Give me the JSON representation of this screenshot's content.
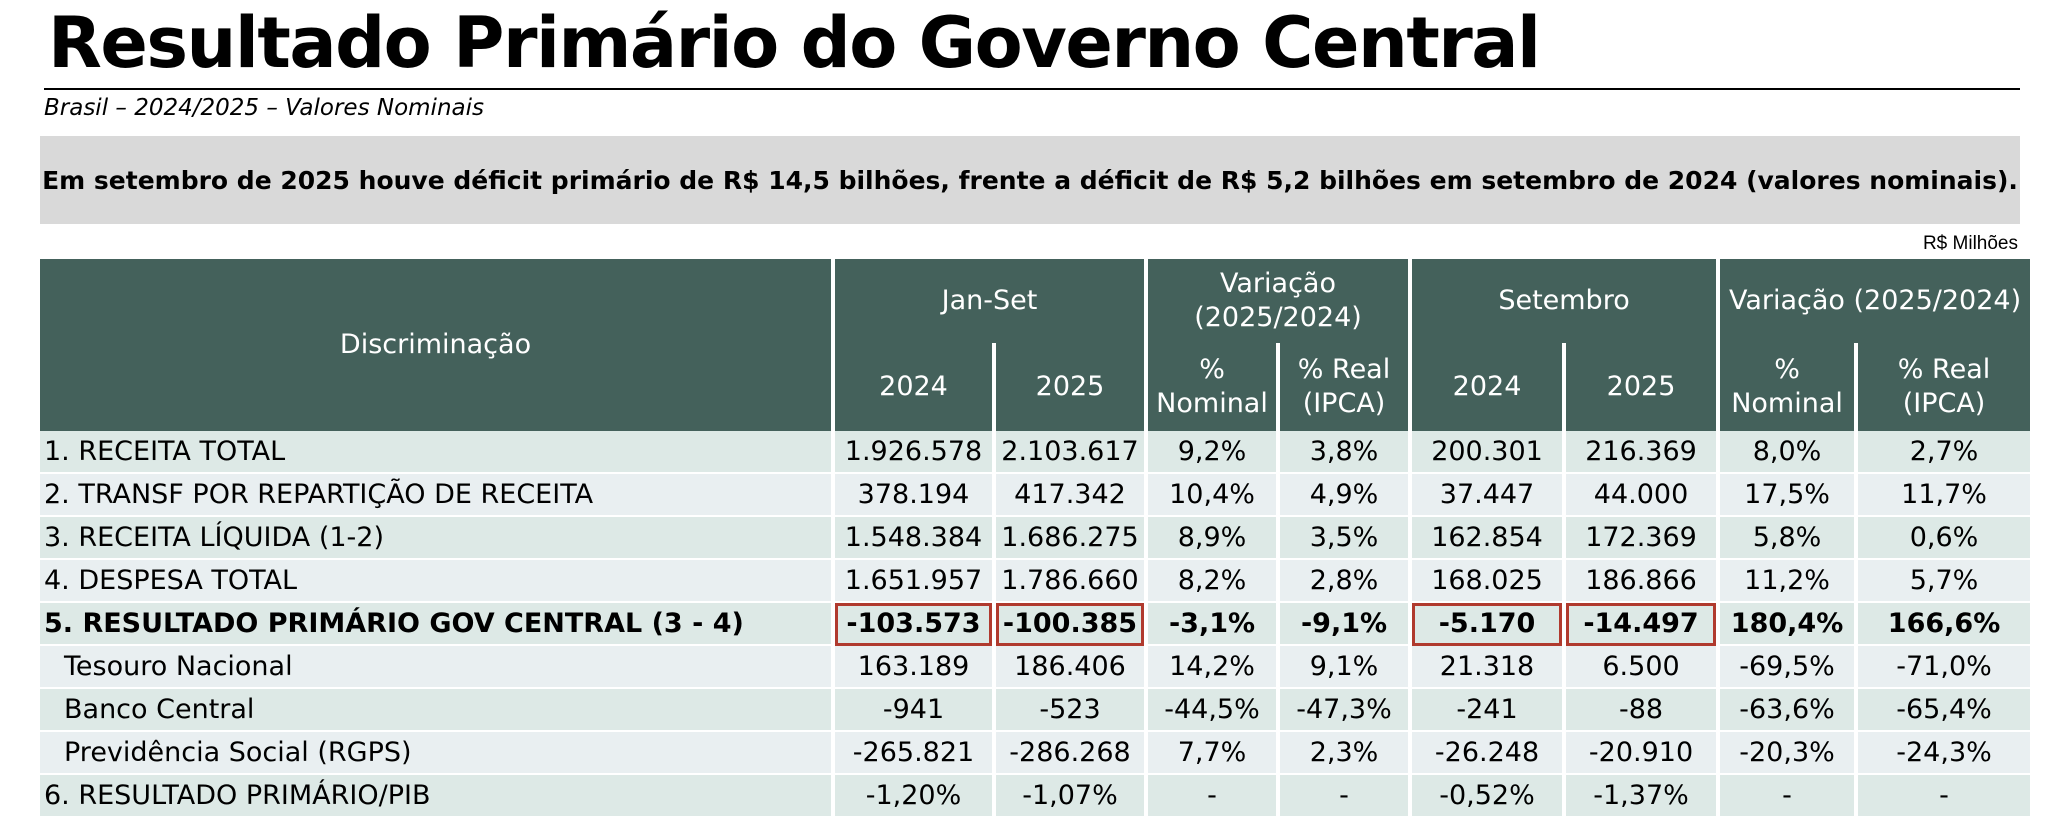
{
  "title": "Resultado Primário do Governo Central",
  "subtitle": "Brasil – 2024/2025 – Valores Nominais",
  "summary": "Em setembro de 2025 houve déficit primário de R$ 14,5 bilhões, frente a déficit de R$ 5,2 bilhões em setembro de 2024 (valores nominais).",
  "unit_note": "R$ Milhões",
  "colors": {
    "header_bg": "#44615b",
    "row_odd": "#dde9e6",
    "row_even": "#e9eff1",
    "highlight_border": "#b03a2e",
    "summary_bg": "#d9d9d9"
  },
  "table": {
    "header": {
      "discriminacao": "Discriminação",
      "group_janset": "Jan-Set",
      "group_var1_line1": "Variação",
      "group_var1_line2": "(2025/2024)",
      "group_setembro": "Setembro",
      "group_var2": "Variação (2025/2024)",
      "year_2024": "2024",
      "year_2025": "2025",
      "pct_line1": "%",
      "nominal": "Nominal",
      "real_line1": "% Real",
      "real_line2": "(IPCA)"
    },
    "rows": [
      {
        "label": "1. RECEITA TOTAL",
        "values": [
          "1.926.578",
          "2.103.617",
          "9,2%",
          "3,8%",
          "200.301",
          "216.369",
          "8,0%",
          "2,7%"
        ]
      },
      {
        "label": "2. TRANSF POR REPARTIÇÃO DE RECEITA",
        "values": [
          "378.194",
          "417.342",
          "10,4%",
          "4,9%",
          "37.447",
          "44.000",
          "17,5%",
          "11,7%"
        ]
      },
      {
        "label": "3. RECEITA LÍQUIDA (1-2)",
        "values": [
          "1.548.384",
          "1.686.275",
          "8,9%",
          "3,5%",
          "162.854",
          "172.369",
          "5,8%",
          "0,6%"
        ]
      },
      {
        "label": "4. DESPESA TOTAL",
        "values": [
          "1.651.957",
          "1.786.660",
          "8,2%",
          "2,8%",
          "168.025",
          "186.866",
          "11,2%",
          "5,7%"
        ]
      },
      {
        "label": "5. RESULTADO PRIMÁRIO GOV CENTRAL (3 - 4)",
        "values": [
          "-103.573",
          "-100.385",
          "-3,1%",
          "-9,1%",
          "-5.170",
          "-14.497",
          "180,4%",
          "166,6%"
        ]
      },
      {
        "label": "Tesouro Nacional",
        "values": [
          "163.189",
          "186.406",
          "14,2%",
          "9,1%",
          "21.318",
          "6.500",
          "-69,5%",
          "-71,0%"
        ]
      },
      {
        "label": "Banco Central",
        "values": [
          "-941",
          "-523",
          "-44,5%",
          "-47,3%",
          "-241",
          "-88",
          "-63,6%",
          "-65,4%"
        ]
      },
      {
        "label": "Previdência Social (RGPS)",
        "values": [
          "-265.821",
          "-286.268",
          "7,7%",
          "2,3%",
          "-26.248",
          "-20.910",
          "-20,3%",
          "-24,3%"
        ]
      },
      {
        "label": "6. RESULTADO PRIMÁRIO/PIB",
        "values": [
          "-1,20%",
          "-1,07%",
          "-",
          "-",
          "-0,52%",
          "-1,37%",
          "-",
          "-"
        ]
      }
    ]
  }
}
